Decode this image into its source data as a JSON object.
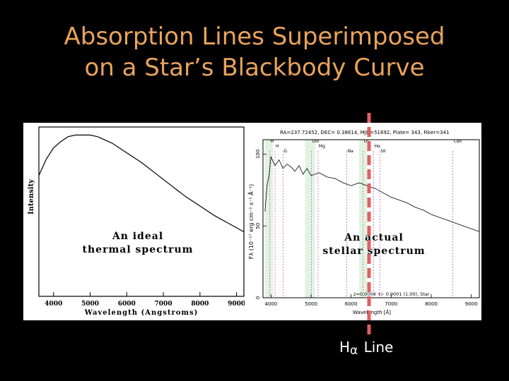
{
  "slide": {
    "title_line1": "Absorption Lines Superimposed",
    "title_line2": "on a Star’s Blackbody Curve",
    "caption_prefix": "H",
    "caption_subscript": "α",
    "caption_suffix": "Line"
  },
  "colors": {
    "background": "#000000",
    "title": "#e8a35c",
    "marker_line": "#e06060",
    "caption": "#ffffff",
    "line_markers": "#c060c0",
    "shaded_band": "#a8e0a8"
  },
  "chart_data": [
    {
      "type": "line",
      "name": "ideal-thermal-spectrum",
      "annotation": [
        "An ideal",
        "thermal spectrum"
      ],
      "xlabel": "Wavelength (Angstroms)",
      "ylabel": "Intensity",
      "xlim": [
        3600,
        9200
      ],
      "ylim": [
        0,
        1.05
      ],
      "xticks": [
        4000,
        5000,
        6000,
        7000,
        8000,
        9000
      ],
      "grid": false,
      "series": [
        {
          "x": [
            3600,
            3800,
            4000,
            4200,
            4400,
            4600,
            4800,
            5000,
            5200,
            5400,
            5600,
            5800,
            6000,
            6400,
            6800,
            7200,
            7600,
            8000,
            8400,
            8800,
            9200
          ],
          "values": [
            0.75,
            0.85,
            0.92,
            0.96,
            0.99,
            1.0,
            1.0,
            1.0,
            0.99,
            0.97,
            0.95,
            0.92,
            0.89,
            0.83,
            0.76,
            0.69,
            0.62,
            0.56,
            0.5,
            0.45,
            0.4
          ]
        }
      ]
    },
    {
      "type": "line",
      "name": "actual-stellar-spectrum",
      "header": "RA=237.72452, DEC= 0.38614, MJD=51692, Plate= 343, Fiber=341",
      "annotation": [
        "An actual",
        "stellar spectrum"
      ],
      "footer": "z=0.0004 +/- 0.0001 (1.00), Star",
      "xlabel": "Wavelength [Å]",
      "ylabel": "Fλ (10⁻¹⁷ erg cm⁻² s⁻¹ Å⁻¹)",
      "xlim": [
        3800,
        9200
      ],
      "ylim": [
        0,
        110
      ],
      "xticks": [
        4000,
        5000,
        6000,
        7000,
        8000,
        9000
      ],
      "xtick_labels": [
        "4000",
        "5000",
        "6000",
        "7000",
        "8000",
        "9000"
      ],
      "yticks": [
        0,
        50,
        100
      ],
      "grid": false,
      "series": [
        {
          "x": [
            3850,
            3900,
            3950,
            4000,
            4100,
            4200,
            4300,
            4400,
            4500,
            4600,
            4700,
            4800,
            4900,
            5000,
            5200,
            5400,
            5600,
            5800,
            6000,
            6200,
            6400,
            6600,
            6800,
            7000,
            7200,
            7400,
            7600,
            7800,
            8000,
            8200,
            8400,
            8600,
            8800,
            9000,
            9200
          ],
          "values": [
            60,
            78,
            85,
            98,
            92,
            96,
            90,
            93,
            91,
            88,
            92,
            86,
            90,
            85,
            87,
            84,
            83,
            80,
            78,
            80,
            78,
            76,
            73,
            70,
            68,
            66,
            63,
            61,
            58,
            56,
            54,
            52,
            50,
            48,
            46
          ]
        }
      ],
      "line_labels": [
        {
          "label": "H",
          "x": 3970
        },
        {
          "label": "H",
          "x": 4100
        },
        {
          "label": "G",
          "x": 4300
        },
        {
          "label": "OIII",
          "x": 5007
        },
        {
          "label": "Mg",
          "x": 5175
        },
        {
          "label": "Na",
          "x": 5893
        },
        {
          "label": "OI",
          "x": 6300
        },
        {
          "label": "Hα",
          "x": 6563
        },
        {
          "label": "SII",
          "x": 6716
        },
        {
          "label": "CaII",
          "x": 8540
        }
      ]
    }
  ]
}
